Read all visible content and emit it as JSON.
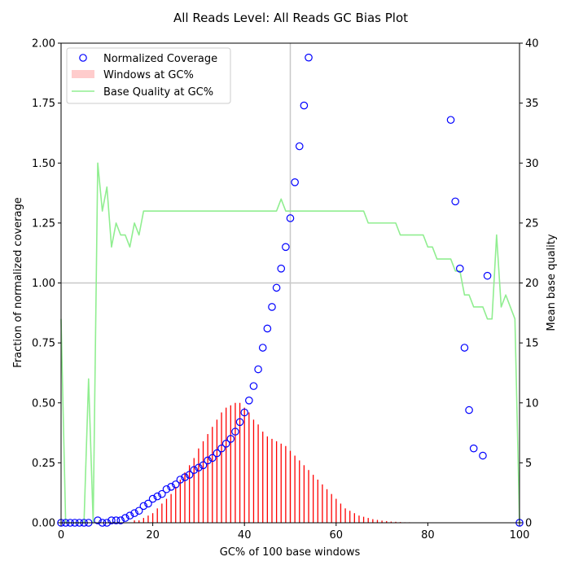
{
  "chart_data": {
    "type": "scatter",
    "title": "All Reads Level: All Reads  GC Bias Plot",
    "xlabel": "GC% of 100 base windows",
    "ylabel": "Fraction of normalized coverage",
    "y2label": "Mean base quality",
    "xlim": [
      0,
      100
    ],
    "ylim": [
      0,
      2
    ],
    "y2lim": [
      0,
      40
    ],
    "xticks": [
      0,
      20,
      40,
      60,
      80,
      100
    ],
    "yticks": [
      0.0,
      0.25,
      0.5,
      0.75,
      1.0,
      1.25,
      1.5,
      1.75,
      2.0
    ],
    "ytick_labels": [
      "0.00",
      "0.25",
      "0.50",
      "0.75",
      "1.00",
      "1.25",
      "1.50",
      "1.75",
      "2.00"
    ],
    "y2ticks": [
      0,
      5,
      10,
      15,
      20,
      25,
      30,
      35,
      40
    ],
    "grid": {
      "vertical_at_x": [
        50
      ],
      "horizontal_at_y": [
        1.0
      ]
    },
    "legend_position": "top-left",
    "colors": {
      "coverage": "#0000ff",
      "windows": "#ff0000",
      "windows_legend": "#ffcccc",
      "quality": "#90ee90",
      "grid": "#c8c8c8"
    },
    "series": [
      {
        "name": "Normalized Coverage",
        "kind": "scatter",
        "axis": "left",
        "x": [
          0,
          1,
          2,
          3,
          4,
          5,
          6,
          8,
          9,
          10,
          11,
          12,
          13,
          14,
          15,
          16,
          17,
          18,
          19,
          20,
          21,
          22,
          23,
          24,
          25,
          26,
          27,
          28,
          29,
          30,
          31,
          32,
          33,
          34,
          35,
          36,
          37,
          38,
          39,
          40,
          41,
          42,
          43,
          44,
          45,
          46,
          47,
          48,
          49,
          50,
          51,
          52,
          53,
          54,
          85,
          86,
          87,
          88,
          89,
          90,
          92,
          93,
          100
        ],
        "y": [
          0.0,
          0.0,
          0.0,
          0.0,
          0.0,
          0.0,
          0.0,
          0.01,
          0.0,
          0.0,
          0.01,
          0.01,
          0.01,
          0.02,
          0.03,
          0.04,
          0.05,
          0.07,
          0.08,
          0.1,
          0.11,
          0.12,
          0.14,
          0.15,
          0.16,
          0.18,
          0.19,
          0.2,
          0.22,
          0.23,
          0.24,
          0.26,
          0.27,
          0.29,
          0.31,
          0.33,
          0.35,
          0.38,
          0.42,
          0.46,
          0.51,
          0.57,
          0.64,
          0.73,
          0.81,
          0.9,
          0.98,
          1.06,
          1.15,
          1.27,
          1.42,
          1.57,
          1.74,
          1.94,
          1.68,
          1.34,
          1.06,
          0.73,
          0.47,
          0.31,
          0.28,
          1.03,
          0.0
        ]
      },
      {
        "name": "Windows at GC%",
        "kind": "bar",
        "axis": "left",
        "x": [
          15,
          16,
          17,
          18,
          19,
          20,
          21,
          22,
          23,
          24,
          25,
          26,
          27,
          28,
          29,
          30,
          31,
          32,
          33,
          34,
          35,
          36,
          37,
          38,
          39,
          40,
          41,
          42,
          43,
          44,
          45,
          46,
          47,
          48,
          49,
          50,
          51,
          52,
          53,
          54,
          55,
          56,
          57,
          58,
          59,
          60,
          61,
          62,
          63,
          64,
          65,
          66,
          67,
          68,
          69,
          70,
          71,
          72,
          73,
          74,
          75,
          76,
          77,
          78,
          79,
          80,
          81,
          82
        ],
        "y": [
          0.0,
          0.01,
          0.01,
          0.02,
          0.03,
          0.04,
          0.06,
          0.08,
          0.1,
          0.12,
          0.15,
          0.18,
          0.21,
          0.24,
          0.27,
          0.31,
          0.34,
          0.37,
          0.4,
          0.43,
          0.46,
          0.48,
          0.49,
          0.5,
          0.5,
          0.48,
          0.46,
          0.43,
          0.41,
          0.38,
          0.36,
          0.35,
          0.34,
          0.33,
          0.32,
          0.3,
          0.28,
          0.26,
          0.24,
          0.22,
          0.2,
          0.18,
          0.16,
          0.14,
          0.12,
          0.1,
          0.08,
          0.06,
          0.05,
          0.04,
          0.03,
          0.025,
          0.02,
          0.015,
          0.012,
          0.009,
          0.007,
          0.005,
          0.004,
          0.003,
          0.002,
          0.002,
          0.001,
          0.001,
          0.001,
          0.001,
          0.001,
          0.001
        ]
      },
      {
        "name": "Base Quality at GC%",
        "kind": "line",
        "axis": "right",
        "x": [
          0,
          1,
          2,
          3,
          4,
          5,
          6,
          7,
          8,
          9,
          10,
          11,
          12,
          13,
          14,
          15,
          16,
          17,
          18,
          20,
          25,
          30,
          35,
          40,
          45,
          47,
          48,
          49,
          50,
          55,
          60,
          65,
          66,
          67,
          70,
          73,
          74,
          76,
          78,
          79,
          80,
          81,
          82,
          83,
          84,
          85,
          86,
          87,
          88,
          89,
          90,
          91,
          92,
          93,
          94,
          95,
          96,
          97,
          98,
          99,
          100
        ],
        "y": [
          17,
          0,
          0,
          0,
          0,
          0,
          12,
          0,
          30,
          26,
          28,
          23,
          25,
          24,
          24,
          23,
          25,
          24,
          26,
          26,
          26,
          26,
          26,
          26,
          26,
          26,
          27,
          26,
          26,
          26,
          26,
          26,
          26,
          25,
          25,
          25,
          24,
          24,
          24,
          24,
          23,
          23,
          22,
          22,
          22,
          22,
          21,
          21,
          19,
          19,
          18,
          18,
          18,
          17,
          17,
          24,
          18,
          19,
          18,
          17,
          0
        ]
      }
    ]
  }
}
